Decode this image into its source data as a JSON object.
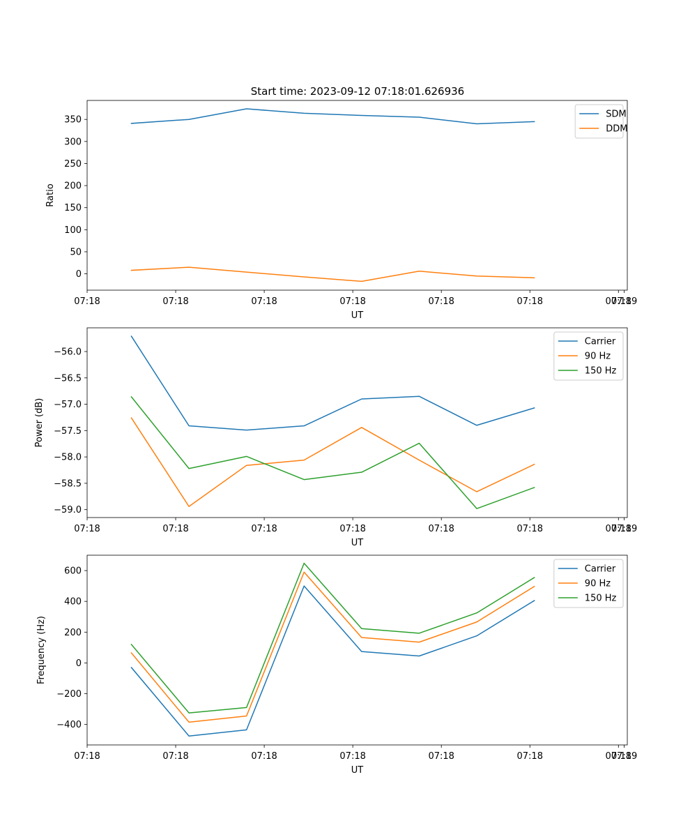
{
  "chart_data": [
    {
      "type": "line",
      "title": "Start time: 2023-09-12 07:18:01.626936",
      "xlabel": "UT",
      "ylabel": "Ratio",
      "xlim": [
        0,
        12.2
      ],
      "ylim": [
        -37,
        393
      ],
      "x_tick_labels": [
        "07:18",
        "07:18",
        "07:18",
        "07:18",
        "07:18",
        "07:18",
        "07:18"
      ],
      "x_tick_positions": [
        0,
        2,
        4,
        6,
        8,
        10,
        12
      ],
      "x_end_label": "07:19",
      "x_end_position": 12.13,
      "y_ticks": [
        0,
        50,
        100,
        150,
        200,
        250,
        300,
        350
      ],
      "y_tick_labels": [
        "0",
        "50",
        "100",
        "150",
        "200",
        "250",
        "300",
        "350"
      ],
      "x": [
        1,
        2.3,
        3.6,
        4.9,
        6.2,
        7.5,
        8.8,
        10.1
      ],
      "legend_position": "upper right",
      "series": [
        {
          "name": "SDM",
          "color": "#1f77b4",
          "values": [
            341,
            350,
            374,
            364,
            359,
            355,
            340,
            345
          ]
        },
        {
          "name": "DDM",
          "color": "#ff7f0e",
          "values": [
            8,
            15,
            4,
            -7,
            -17,
            6,
            -5,
            -9
          ]
        }
      ]
    },
    {
      "type": "line",
      "title": "",
      "xlabel": "UT",
      "ylabel": "Power (dB)",
      "xlim": [
        0,
        12.2
      ],
      "ylim": [
        -59.15,
        -55.55
      ],
      "x_tick_labels": [
        "07:18",
        "07:18",
        "07:18",
        "07:18",
        "07:18",
        "07:18",
        "07:18"
      ],
      "x_tick_positions": [
        0,
        2,
        4,
        6,
        8,
        10,
        12
      ],
      "x_end_label": "07:19",
      "x_end_position": 12.13,
      "y_ticks": [
        -59.0,
        -58.5,
        -58.0,
        -57.5,
        -57.0,
        -56.5,
        -56.0
      ],
      "y_tick_labels": [
        "−59.0",
        "−58.5",
        "−58.0",
        "−57.5",
        "−57.0",
        "−56.5",
        "−56.0"
      ],
      "x": [
        1,
        2.3,
        3.6,
        4.9,
        6.2,
        7.5,
        8.8,
        10.1
      ],
      "legend_position": "upper right",
      "series": [
        {
          "name": "Carrier",
          "color": "#1f77b4",
          "values": [
            -55.71,
            -57.41,
            -57.49,
            -57.41,
            -56.9,
            -56.85,
            -57.4,
            -57.07
          ]
        },
        {
          "name": "90 Hz",
          "color": "#ff7f0e",
          "values": [
            -57.26,
            -58.94,
            -58.16,
            -58.06,
            -57.44,
            -58.06,
            -58.66,
            -58.14
          ]
        },
        {
          "name": "150 Hz",
          "color": "#2ca02c",
          "values": [
            -56.86,
            -58.22,
            -57.99,
            -58.43,
            -58.29,
            -57.74,
            -58.98,
            -58.58
          ]
        }
      ]
    },
    {
      "type": "line",
      "title": "",
      "xlabel": "UT",
      "ylabel": "Frequency (Hz)",
      "xlim": [
        0,
        12.2
      ],
      "ylim": [
        -533,
        700
      ],
      "x_tick_labels": [
        "07:18",
        "07:18",
        "07:18",
        "07:18",
        "07:18",
        "07:18",
        "07:18"
      ],
      "x_tick_positions": [
        0,
        2,
        4,
        6,
        8,
        10,
        12
      ],
      "x_end_label": "07:19",
      "x_end_position": 12.13,
      "y_ticks": [
        -400,
        -200,
        0,
        200,
        400,
        600
      ],
      "y_tick_labels": [
        "−400",
        "−200",
        "0",
        "200",
        "400",
        "600"
      ],
      "x": [
        1,
        2.3,
        3.6,
        4.9,
        6.2,
        7.5,
        8.8,
        10.1
      ],
      "legend_position": "upper right",
      "series": [
        {
          "name": "Carrier",
          "color": "#1f77b4",
          "values": [
            -30,
            -475,
            -435,
            500,
            74,
            45,
            176,
            405
          ]
        },
        {
          "name": "90 Hz",
          "color": "#ff7f0e",
          "values": [
            65,
            -385,
            -345,
            590,
            165,
            135,
            266,
            497
          ]
        },
        {
          "name": "150 Hz",
          "color": "#2ca02c",
          "values": [
            120,
            -325,
            -290,
            648,
            223,
            193,
            325,
            555
          ]
        }
      ]
    }
  ]
}
